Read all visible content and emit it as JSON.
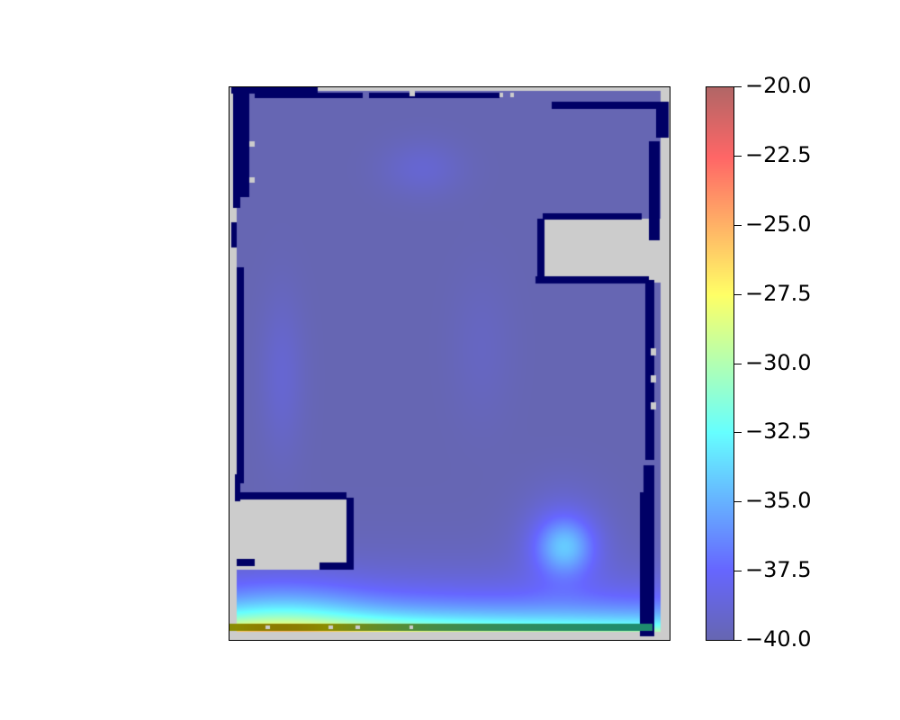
{
  "chart_data": {
    "type": "heatmap",
    "title": "",
    "xlabel": "",
    "ylabel": "",
    "colormap": "jet",
    "alpha": 0.6,
    "color_range": [
      -40.0,
      -20.0
    ],
    "colorbar": {
      "ticks": [
        -20.0,
        -22.5,
        -25.0,
        -27.5,
        -30.0,
        -32.5,
        -35.0,
        -37.5,
        -40.0
      ],
      "tick_labels": [
        "−20.0",
        "−22.5",
        "−25.0",
        "−27.5",
        "−30.0",
        "−32.5",
        "−35.0",
        "−37.5",
        "−40.0"
      ]
    },
    "background_color": "#cccccc",
    "wall_color": "#000066",
    "grid": false,
    "axes_ticks_visible": false,
    "field_features": [
      {
        "region": "interior of map",
        "value": -40.0
      },
      {
        "region": "top-center blob",
        "value": -39.0
      },
      {
        "region": "left-center blob",
        "value": -39.0
      },
      {
        "region": "bottom-right patch",
        "value": -35.0
      },
      {
        "region": "bottom edge",
        "value": -27.0
      },
      {
        "region": "bottom-left corner",
        "value": -26.0
      }
    ]
  }
}
